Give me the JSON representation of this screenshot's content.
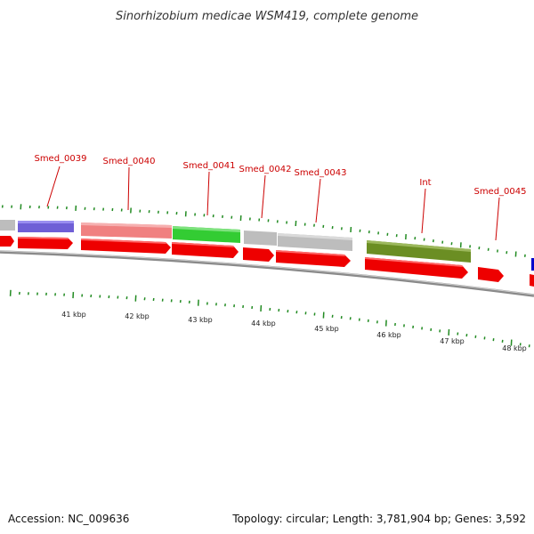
{
  "title": "Sinorhizobium medicae WSM419, complete genome",
  "gene_labels": [
    "Smed_0039",
    "Smed_0040",
    "Smed_0041",
    "Smed_0042",
    "Smed_0043",
    "Int",
    "Smed_0045"
  ],
  "kbp_ticks": [
    "41 kbp",
    "42 kbp",
    "43 kbp",
    "44 kbp",
    "45 kbp",
    "46 kbp",
    "47 kbp",
    "48 kbp"
  ],
  "footer": {
    "accession": "Accession: NC_009636",
    "summary": "Topology: circular; Length: 3,781,904 bp; Genes: 3,592"
  },
  "colors": {
    "cds_arrow": "#ee0000",
    "backbone": "#888888",
    "tick": "#228b22",
    "label_line": "#cc0000",
    "feature_purple": "#6f5fd6",
    "feature_pink": "#f08080",
    "feature_green": "#33cc33",
    "feature_gray": "#bdbdbd",
    "feature_olive": "#6b8e23",
    "feature_blue": "#0000cc"
  },
  "features": [
    {
      "color": "feature_gray"
    },
    {
      "color": "feature_purple"
    },
    {
      "color": "feature_pink"
    },
    {
      "color": "feature_green"
    },
    {
      "color": "feature_gray"
    },
    {
      "color": "feature_gray"
    },
    {
      "color": "feature_olive"
    },
    {
      "color": "feature_blue"
    }
  ]
}
